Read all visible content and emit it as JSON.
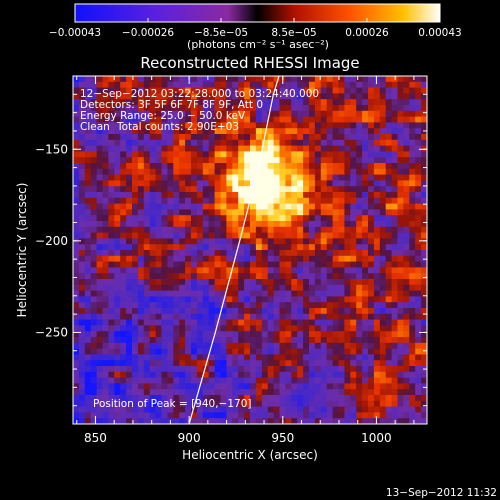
{
  "chart_data": {
    "type": "heatmap",
    "title": "Reconstructed RHESSI Image",
    "xlabel": "Heliocentric X (arcsec)",
    "ylabel": "Heliocentric Y (arcsec)",
    "xlim": [
      838,
      1027
    ],
    "ylim": [
      -300,
      -110
    ],
    "x_ticks": [
      850,
      900,
      950,
      1000
    ],
    "x_tick_labels": [
      "850",
      "900",
      "950",
      "1000"
    ],
    "y_ticks": [
      -250,
      -200,
      -150
    ],
    "y_tick_labels": [
      "−250",
      "−200",
      "−150"
    ],
    "colorbar": {
      "min": -0.00043,
      "max": 0.00043,
      "tick_labels": [
        "−0.00043",
        "−0.00026",
        "−8.5e−05",
        "8.5e−05",
        "0.00026",
        "0.00043"
      ],
      "unit": "(photons cm⁻² s⁻¹ asec⁻²)"
    },
    "annotations": {
      "time_range": "12−Sep−2012 03:22:28.000 to 03:24:40.000",
      "detectors": "Detectors: 3F 5F 6F 7F 8F 9F, Att 0",
      "energy": "Energy Range: 25.0 − 50.0 keV",
      "clean_label": "Clean",
      "total_counts": "Total counts: 2.90E+03",
      "peak": "Position of Peak = [940,−170]"
    },
    "peak_position": [
      940,
      -170
    ],
    "limb_curve": [
      [
        900,
        -300
      ],
      [
        914,
        -250
      ],
      [
        927,
        -200
      ],
      [
        937,
        -160
      ],
      [
        945,
        -120
      ],
      [
        948,
        -110
      ]
    ]
  },
  "footer": {
    "timestamp": "13−Sep−2012 11:32"
  }
}
